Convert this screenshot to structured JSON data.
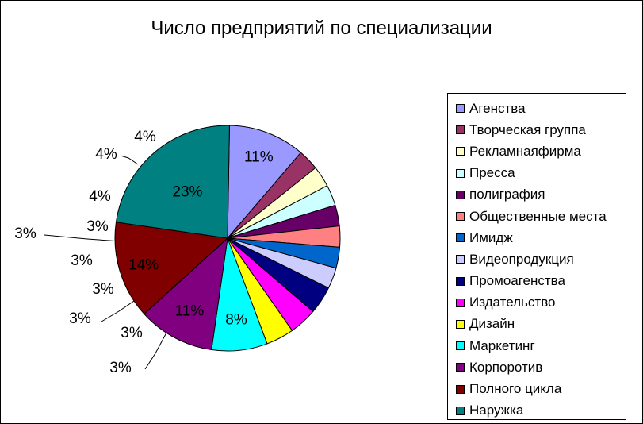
{
  "chart_data": {
    "type": "pie",
    "title": "Число предприятий по специализации",
    "legend_position": "right",
    "slices": [
      {
        "name": "Агенства",
        "value": 11,
        "label": "11%",
        "color": "#9999ff"
      },
      {
        "name": "Творческая группа",
        "value": 3,
        "label": "3%",
        "color": "#993366"
      },
      {
        "name": "Рекламнаяфирма",
        "value": 3,
        "label": "3%",
        "color": "#ffffcc"
      },
      {
        "name": "Пресса",
        "value": 3,
        "label": "3%",
        "color": "#ccffff"
      },
      {
        "name": "полиграфия",
        "value": 3,
        "label": "3%",
        "color": "#660066"
      },
      {
        "name": "Общественные места",
        "value": 3,
        "label": "3%",
        "color": "#ff8080"
      },
      {
        "name": "Имидж",
        "value": 3,
        "label": "3%",
        "color": "#0066cc"
      },
      {
        "name": "Видеопродукция",
        "value": 3,
        "label": "3%",
        "color": "#ccccff"
      },
      {
        "name": "Промоагенства",
        "value": 4,
        "label": "4%",
        "color": "#000080"
      },
      {
        "name": "Издательство",
        "value": 4,
        "label": "4%",
        "color": "#ff00ff"
      },
      {
        "name": "Дизайн",
        "value": 4,
        "label": "4%",
        "color": "#ffff00"
      },
      {
        "name": "Маркетинг",
        "value": 8,
        "label": "8%",
        "color": "#00ffff"
      },
      {
        "name": "Корпоротив",
        "value": 11,
        "label": "11%",
        "color": "#800080"
      },
      {
        "name": "Полного цикла",
        "value": 14,
        "label": "14%",
        "color": "#800000"
      },
      {
        "name": "Наружка",
        "value": 23,
        "label": "23%",
        "color": "#008080"
      }
    ]
  }
}
